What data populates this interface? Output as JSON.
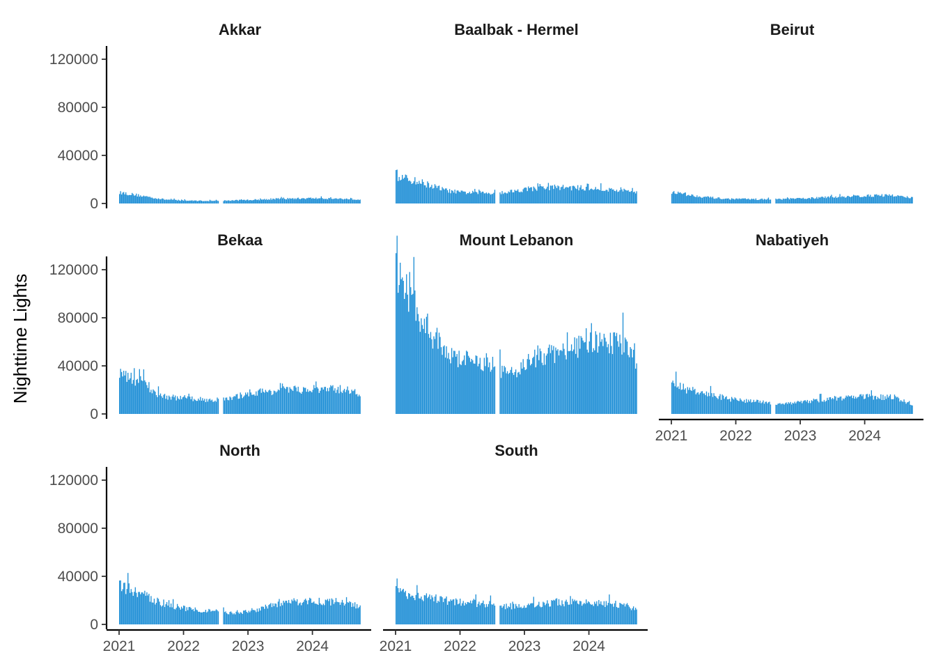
{
  "chart_data": {
    "type": "bar",
    "ylabel": "Nighttime Lights",
    "xlabel": "",
    "ylim": [
      0,
      130000
    ],
    "y_ticks": [
      "0",
      "40000",
      "80000",
      "120000"
    ],
    "y_tick_values": [
      0,
      40000,
      80000,
      120000
    ],
    "x_ticks": [
      "2021",
      "2022",
      "2023",
      "2024"
    ],
    "x_tick_values": [
      2021.0,
      2022.0,
      2023.0,
      2024.0
    ],
    "x_range": [
      2021.0,
      2024.75
    ],
    "bar_color": "#1f8fd6",
    "note": "Daily values per region; approximate trend anchors (decimal year, value) read from the figure.",
    "panels": [
      {
        "name": "Akkar",
        "trend": [
          [
            2021.0,
            9500
          ],
          [
            2021.3,
            7000
          ],
          [
            2021.7,
            3500
          ],
          [
            2022.0,
            2500
          ],
          [
            2022.5,
            2200
          ],
          [
            2023.0,
            3000
          ],
          [
            2023.5,
            4000
          ],
          [
            2024.0,
            4500
          ],
          [
            2024.5,
            4000
          ],
          [
            2024.75,
            3500
          ]
        ],
        "gaps": [
          [
            2022.55,
            2022.62
          ]
        ]
      },
      {
        "name": "Baalbak - Hermel",
        "trend": [
          [
            2021.0,
            23000
          ],
          [
            2021.4,
            18000
          ],
          [
            2021.8,
            11000
          ],
          [
            2022.0,
            9500
          ],
          [
            2022.5,
            9000
          ],
          [
            2022.75,
            10000
          ],
          [
            2023.0,
            12000
          ],
          [
            2023.5,
            14000
          ],
          [
            2024.0,
            13000
          ],
          [
            2024.5,
            11000
          ],
          [
            2024.75,
            10000
          ]
        ],
        "gaps": [
          [
            2022.55,
            2022.62
          ]
        ]
      },
      {
        "name": "Beirut",
        "trend": [
          [
            2021.0,
            10000
          ],
          [
            2021.3,
            7000
          ],
          [
            2021.8,
            4000
          ],
          [
            2022.5,
            3500
          ],
          [
            2023.0,
            4200
          ],
          [
            2023.5,
            5500
          ],
          [
            2024.0,
            6500
          ],
          [
            2024.4,
            7000
          ],
          [
            2024.75,
            5000
          ]
        ],
        "gaps": [
          [
            2022.55,
            2022.62
          ]
        ]
      },
      {
        "name": "Bekaa",
        "trend": [
          [
            2021.0,
            33000
          ],
          [
            2021.4,
            27000
          ],
          [
            2021.6,
            16000
          ],
          [
            2022.0,
            13000
          ],
          [
            2022.5,
            12000
          ],
          [
            2022.75,
            13000
          ],
          [
            2023.0,
            18000
          ],
          [
            2023.5,
            20000
          ],
          [
            2024.0,
            21000
          ],
          [
            2024.5,
            21000
          ],
          [
            2024.75,
            17000
          ]
        ],
        "gaps": [
          [
            2022.55,
            2022.62
          ]
        ]
      },
      {
        "name": "Mount Lebanon",
        "trend": [
          [
            2021.0,
            118000
          ],
          [
            2021.2,
            100000
          ],
          [
            2021.5,
            70000
          ],
          [
            2021.8,
            52000
          ],
          [
            2022.0,
            47000
          ],
          [
            2022.3,
            44000
          ],
          [
            2022.5,
            42000
          ],
          [
            2022.7,
            35000
          ],
          [
            2022.9,
            38000
          ],
          [
            2023.1,
            46000
          ],
          [
            2023.5,
            52000
          ],
          [
            2024.0,
            60000
          ],
          [
            2024.5,
            60000
          ],
          [
            2024.75,
            45000
          ]
        ],
        "gaps": [
          [
            2022.55,
            2022.62
          ]
        ]
      },
      {
        "name": "Nabatiyeh",
        "trend": [
          [
            2021.0,
            26000
          ],
          [
            2021.3,
            20000
          ],
          [
            2021.7,
            15000
          ],
          [
            2022.0,
            12000
          ],
          [
            2022.5,
            9500
          ],
          [
            2022.75,
            9000
          ],
          [
            2023.0,
            10000
          ],
          [
            2023.5,
            13000
          ],
          [
            2024.0,
            15000
          ],
          [
            2024.5,
            14000
          ],
          [
            2024.75,
            8000
          ]
        ],
        "gaps": [
          [
            2022.55,
            2022.62
          ]
        ]
      },
      {
        "name": "North",
        "trend": [
          [
            2021.0,
            33000
          ],
          [
            2021.3,
            27000
          ],
          [
            2021.7,
            17000
          ],
          [
            2022.0,
            14000
          ],
          [
            2022.5,
            11000
          ],
          [
            2022.75,
            10000
          ],
          [
            2023.0,
            11000
          ],
          [
            2023.3,
            15000
          ],
          [
            2023.7,
            19000
          ],
          [
            2024.0,
            20000
          ],
          [
            2024.5,
            19000
          ],
          [
            2024.75,
            15000
          ]
        ],
        "gaps": [
          [
            2022.55,
            2022.62
          ]
        ]
      },
      {
        "name": "South",
        "trend": [
          [
            2021.0,
            28000
          ],
          [
            2021.3,
            25000
          ],
          [
            2021.7,
            21000
          ],
          [
            2022.0,
            19000
          ],
          [
            2022.5,
            17000
          ],
          [
            2022.75,
            15000
          ],
          [
            2023.0,
            15500
          ],
          [
            2023.5,
            19000
          ],
          [
            2024.0,
            18000
          ],
          [
            2024.5,
            17000
          ],
          [
            2024.75,
            13000
          ]
        ],
        "gaps": [
          [
            2022.55,
            2022.62
          ]
        ]
      }
    ]
  }
}
